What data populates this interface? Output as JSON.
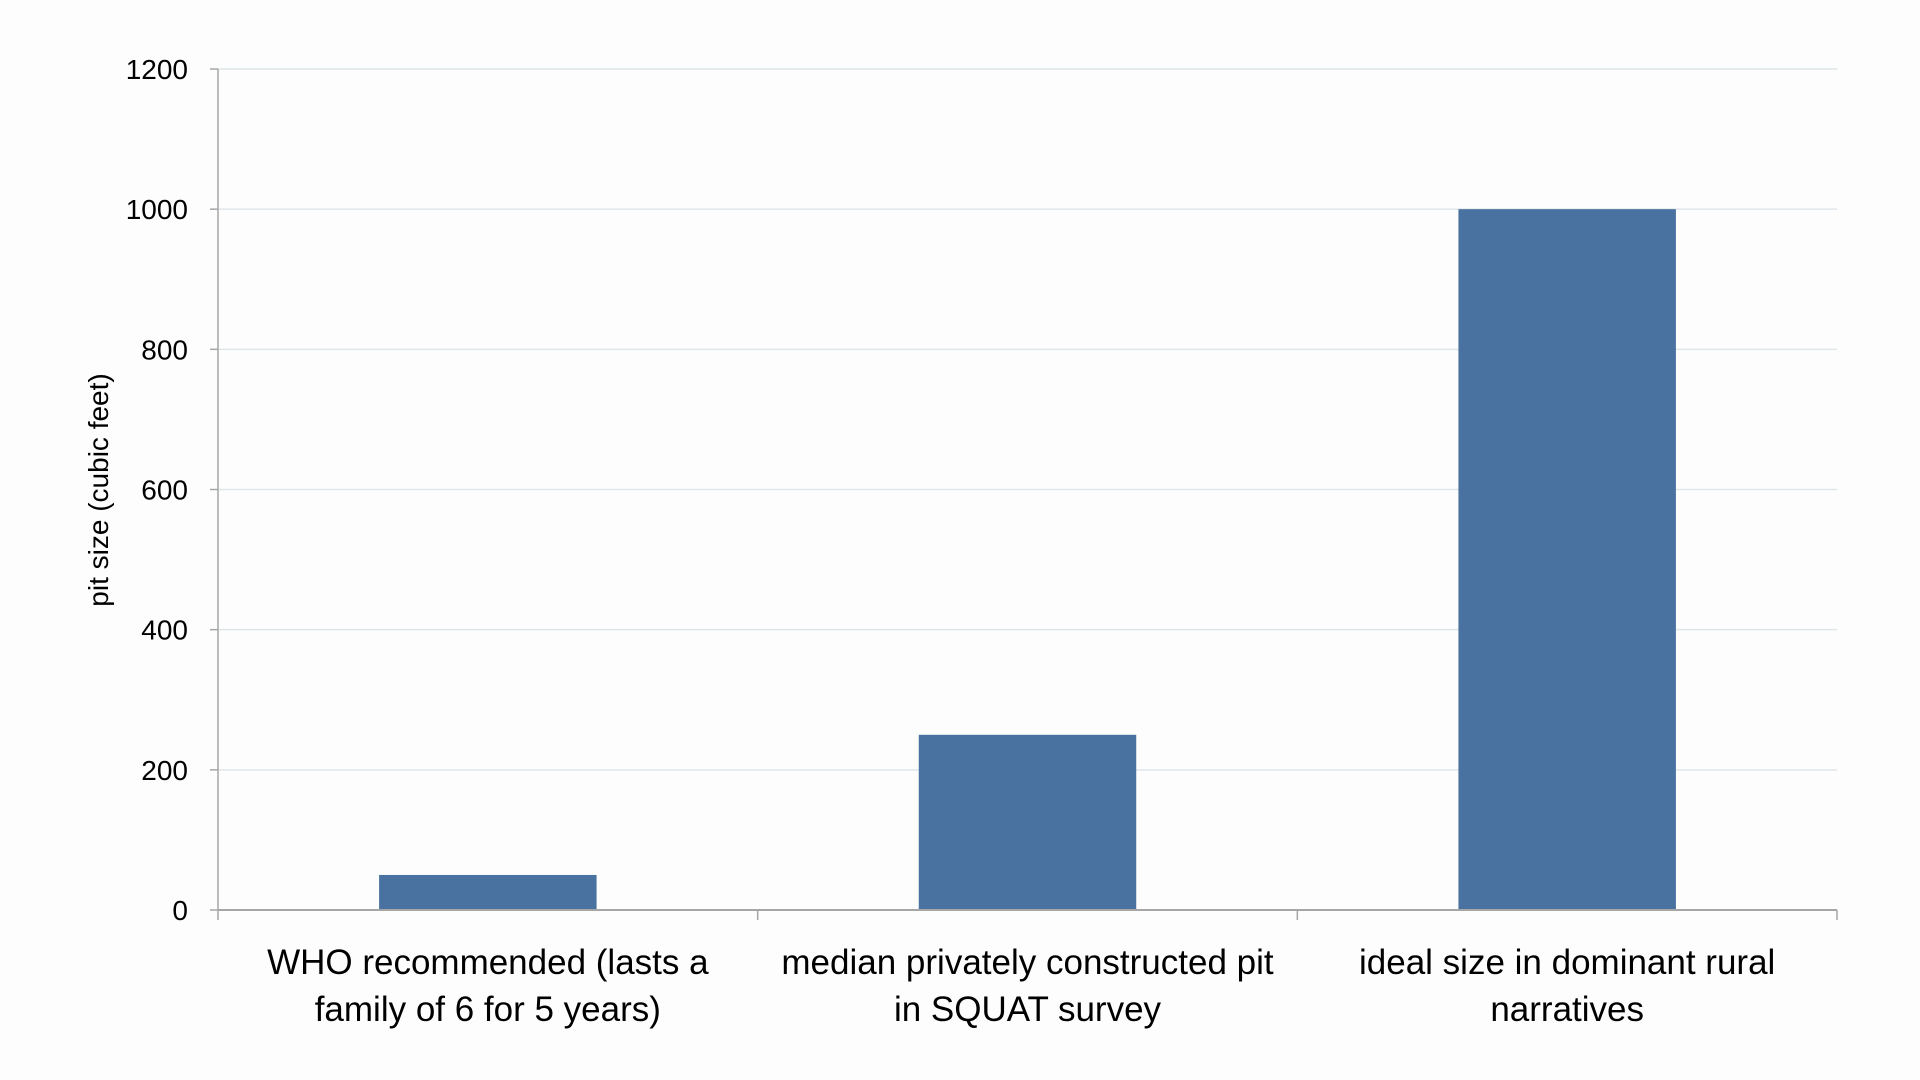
{
  "chart_data": {
    "type": "bar",
    "categories": [
      [
        "WHO recommended (lasts a",
        "family of 6 for 5 years)"
      ],
      [
        "median privately constructed pit",
        "in SQUAT survey"
      ],
      [
        "ideal size in dominant rural",
        "narratives"
      ]
    ],
    "values": [
      50,
      250,
      1000
    ],
    "xlabel": "",
    "ylabel": "pit size (cubic feet)",
    "ylim": [
      0,
      1200
    ],
    "yticks": [
      0,
      200,
      400,
      600,
      800,
      1000,
      1200
    ],
    "grid": true,
    "bar_color": "#4a72a0",
    "grid_color": "#dfe6ea",
    "axis_color": "#a6a6a6"
  }
}
